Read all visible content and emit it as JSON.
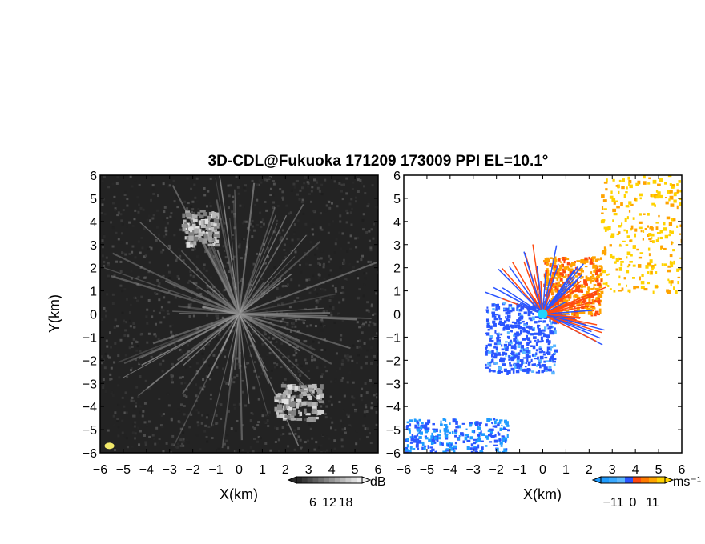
{
  "title": "3D-CDL@Fukuoka 171209 173009 PPI EL=10.1°",
  "chart_data": [
    {
      "type": "heatmap",
      "panel": "reflectivity",
      "xlabel": "X(km)",
      "ylabel": "Y(km)",
      "xlim": [
        -6,
        6
      ],
      "ylim": [
        -6,
        6
      ],
      "xticks": [
        -6,
        -5,
        -4,
        -3,
        -2,
        -1,
        0,
        1,
        2,
        3,
        4,
        5,
        6
      ],
      "yticks": [
        -6,
        -5,
        -4,
        -3,
        -2,
        -1,
        0,
        1,
        2,
        3,
        4,
        5,
        6
      ],
      "colorbar": {
        "unit": "dB",
        "ticks": [
          6,
          12,
          18
        ],
        "palette": "grayscale",
        "extend": "both"
      },
      "features": [
        {
          "name": "radial streaks",
          "center": [
            0,
            0
          ],
          "value_dB": 12
        },
        {
          "name": "clutter NW",
          "x": [
            -2.5,
            -1.0
          ],
          "y": [
            3.0,
            4.5
          ],
          "value_dB": 15
        },
        {
          "name": "clutter SE",
          "x": [
            1.5,
            3.5
          ],
          "y": [
            -4.5,
            -3.0
          ],
          "value_dB": 15
        },
        {
          "name": "strong return",
          "x": [
            -5.6
          ],
          "y": [
            -5.7
          ],
          "value_dB": 18
        }
      ]
    },
    {
      "type": "heatmap",
      "panel": "doppler velocity",
      "xlabel": "X(km)",
      "xlim": [
        -6,
        6
      ],
      "ylim": [
        -6,
        6
      ],
      "xticks": [
        -6,
        -5,
        -4,
        -3,
        -2,
        -1,
        0,
        1,
        2,
        3,
        4,
        5,
        6
      ],
      "yticks": [
        -6,
        -5,
        -4,
        -3,
        -2,
        -1,
        0,
        1,
        2,
        3,
        4,
        5,
        6
      ],
      "colorbar": {
        "unit": "ms⁻¹",
        "ticks": [
          -11,
          0,
          11
        ],
        "palette": "diverging blue-red-yellow",
        "extend": "both"
      },
      "features": [
        {
          "name": "receding core",
          "x": [
            0,
            2.5
          ],
          "y": [
            0,
            2.5
          ],
          "value_ms": 5
        },
        {
          "name": "approaching core",
          "x": [
            -2.5,
            0.5
          ],
          "y": [
            -2.5,
            0.5
          ],
          "value_ms": -6
        },
        {
          "name": "far-field NE",
          "x": [
            2.5,
            6
          ],
          "y": [
            1,
            6
          ],
          "value_ms": 9
        },
        {
          "name": "far-field SW",
          "x": [
            -6,
            -1.5
          ],
          "y": [
            -6,
            -4.5
          ],
          "value_ms": -9
        }
      ]
    }
  ]
}
